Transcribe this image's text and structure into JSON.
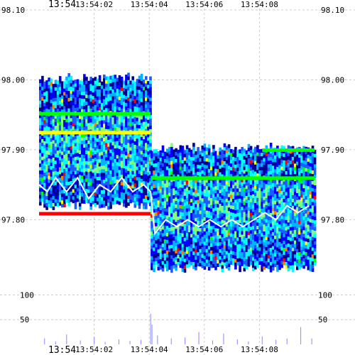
{
  "chart_data": {
    "type": "heatmap",
    "title": "",
    "x": {
      "start": "13:54:00",
      "end": "13:54:10",
      "first_label": "13:54",
      "ticks": [
        "13:54:02",
        "13:54:04",
        "13:54:06",
        "13:54:08"
      ]
    },
    "price_axis": {
      "ylim": [
        97.71,
        98.1
      ],
      "ticks": [
        "98.10",
        "98.00",
        "97.90",
        "97.80"
      ]
    },
    "volume_axis": {
      "ylim": [
        0,
        125
      ],
      "ticks": [
        "100",
        "50"
      ]
    },
    "grid": true,
    "colors": {
      "scale": [
        "#00008b",
        "#0000ff",
        "#1e5aff",
        "#00b4ff",
        "#00ffff",
        "#7fff7f",
        "#00ff00",
        "#ffff00",
        "#ff8000",
        "#ff0000"
      ],
      "trade_line": "#ffffff",
      "volume_bar": "#8888ff",
      "grid": "#cccccc"
    },
    "segments": [
      {
        "t_start": 0.0,
        "t_end": 4.05,
        "top": 98.0,
        "bottom": 97.82
      },
      {
        "t_start": 4.05,
        "t_end": 10.0,
        "top": 97.9,
        "bottom": 97.73
      }
    ],
    "trades": [
      [
        0.0,
        97.85
      ],
      [
        0.3,
        97.84
      ],
      [
        0.6,
        97.86
      ],
      [
        1.0,
        97.84
      ],
      [
        1.4,
        97.86
      ],
      [
        1.8,
        97.83
      ],
      [
        2.2,
        97.85
      ],
      [
        2.6,
        97.84
      ],
      [
        3.0,
        97.86
      ],
      [
        3.4,
        97.84
      ],
      [
        3.8,
        97.85
      ],
      [
        4.05,
        97.84
      ],
      [
        4.2,
        97.78
      ],
      [
        4.6,
        97.8
      ],
      [
        5.0,
        97.79
      ],
      [
        5.4,
        97.8
      ],
      [
        5.8,
        97.79
      ],
      [
        6.2,
        97.8
      ],
      [
        6.6,
        97.79
      ],
      [
        7.0,
        97.8
      ],
      [
        7.4,
        97.79
      ],
      [
        7.8,
        97.8
      ],
      [
        8.2,
        97.81
      ],
      [
        8.6,
        97.8
      ],
      [
        9.0,
        97.82
      ],
      [
        9.4,
        97.81
      ],
      [
        9.8,
        97.82
      ]
    ],
    "volume": [
      [
        0.2,
        12
      ],
      [
        0.6,
        6
      ],
      [
        1.0,
        20
      ],
      [
        1.5,
        8
      ],
      [
        2.0,
        15
      ],
      [
        2.4,
        5
      ],
      [
        2.9,
        10
      ],
      [
        3.3,
        7
      ],
      [
        3.7,
        9
      ],
      [
        4.05,
        62
      ],
      [
        4.1,
        40
      ],
      [
        4.3,
        18
      ],
      [
        4.8,
        12
      ],
      [
        5.3,
        14
      ],
      [
        5.8,
        25
      ],
      [
        6.3,
        8
      ],
      [
        6.7,
        22
      ],
      [
        7.2,
        10
      ],
      [
        7.6,
        6
      ],
      [
        8.1,
        16
      ],
      [
        8.6,
        9
      ],
      [
        9.0,
        12
      ],
      [
        9.5,
        35
      ],
      [
        9.9,
        12
      ]
    ]
  }
}
